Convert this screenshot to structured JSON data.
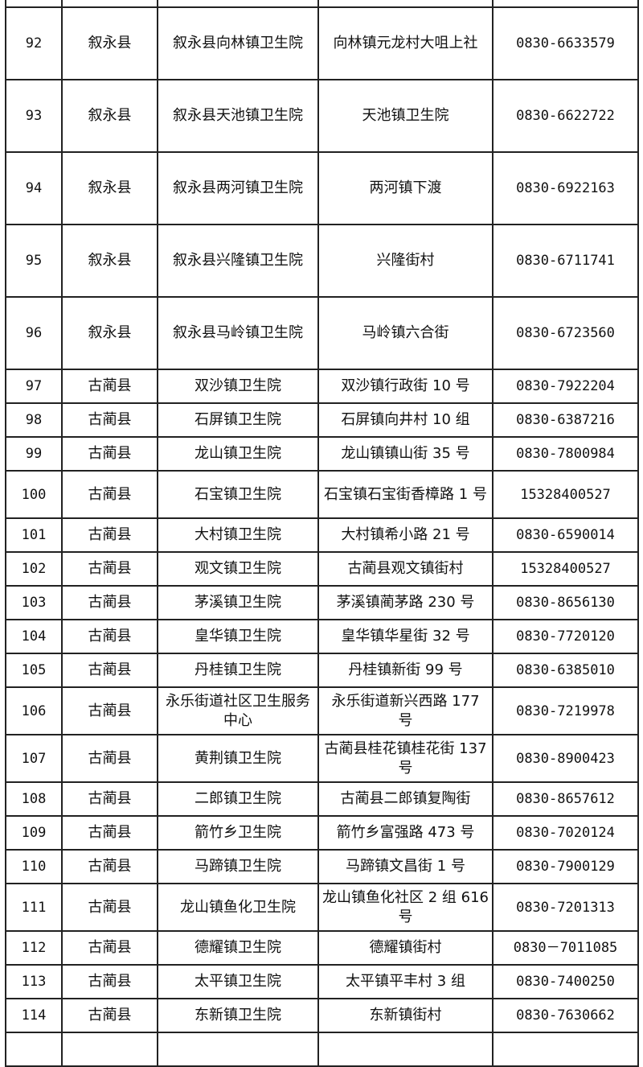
{
  "rows": [
    {
      "no": "",
      "county": "",
      "hospital": "",
      "address": "",
      "phone": ""
    },
    {
      "no": "92",
      "county": "叙永县",
      "hospital": "叙永县向林镇卫生院",
      "address": "向林镇元龙村大咀上社",
      "phone": "0830-6633579"
    },
    {
      "no": "93",
      "county": "叙永县",
      "hospital": "叙永县天池镇卫生院",
      "address": "天池镇卫生院",
      "phone": "0830-6622722"
    },
    {
      "no": "94",
      "county": "叙永县",
      "hospital": "叙永县两河镇卫生院",
      "address": "两河镇下渡",
      "phone": "0830-6922163"
    },
    {
      "no": "95",
      "county": "叙永县",
      "hospital": "叙永县兴隆镇卫生院",
      "address": "兴隆街村",
      "phone": "0830-6711741"
    },
    {
      "no": "96",
      "county": "叙永县",
      "hospital": "叙永县马岭镇卫生院",
      "address": "马岭镇六合街",
      "phone": "0830-6723560"
    },
    {
      "no": "97",
      "county": "古蔺县",
      "hospital": "双沙镇卫生院",
      "address": "双沙镇行政街 10 号",
      "phone": "0830-7922204"
    },
    {
      "no": "98",
      "county": "古蔺县",
      "hospital": "石屏镇卫生院",
      "address": "石屏镇向井村 10 组",
      "phone": "0830-6387216"
    },
    {
      "no": "99",
      "county": "古蔺县",
      "hospital": "龙山镇卫生院",
      "address": "龙山镇镇山街 35 号",
      "phone": "0830-7800984"
    },
    {
      "no": "100",
      "county": "古蔺县",
      "hospital": "石宝镇卫生院",
      "address": "石宝镇石宝街香樟路 1 号",
      "phone": "15328400527"
    },
    {
      "no": "101",
      "county": "古蔺县",
      "hospital": "大村镇卫生院",
      "address": "大村镇希小路 21 号",
      "phone": "0830-6590014"
    },
    {
      "no": "102",
      "county": "古蔺县",
      "hospital": "观文镇卫生院",
      "address": "古蔺县观文镇街村",
      "phone": "15328400527"
    },
    {
      "no": "103",
      "county": "古蔺县",
      "hospital": "茅溪镇卫生院",
      "address": "茅溪镇蔺茅路 230 号",
      "phone": "0830-8656130"
    },
    {
      "no": "104",
      "county": "古蔺县",
      "hospital": "皇华镇卫生院",
      "address": "皇华镇华星街 32 号",
      "phone": "0830-7720120"
    },
    {
      "no": "105",
      "county": "古蔺县",
      "hospital": "丹桂镇卫生院",
      "address": "丹桂镇新街 99 号",
      "phone": "0830-6385010"
    },
    {
      "no": "106",
      "county": "古蔺县",
      "hospital": "永乐街道社区卫生服务中心",
      "address": "永乐街道新兴西路 177 号",
      "phone": "0830-7219978"
    },
    {
      "no": "107",
      "county": "古蔺县",
      "hospital": "黄荆镇卫生院",
      "address": "古蔺县桂花镇桂花街 137 号",
      "phone": "0830-8900423"
    },
    {
      "no": "108",
      "county": "古蔺县",
      "hospital": "二郎镇卫生院",
      "address": "古蔺县二郎镇复陶街",
      "phone": "0830-8657612"
    },
    {
      "no": "109",
      "county": "古蔺县",
      "hospital": "箭竹乡卫生院",
      "address": "箭竹乡富强路 473 号",
      "phone": "0830-7020124"
    },
    {
      "no": "110",
      "county": "古蔺县",
      "hospital": "马蹄镇卫生院",
      "address": "马蹄镇文昌街 1 号",
      "phone": "0830-7900129"
    },
    {
      "no": "111",
      "county": "古蔺县",
      "hospital": "龙山镇鱼化卫生院",
      "address": "龙山镇鱼化社区 2 组 616 号",
      "phone": "0830-7201313"
    },
    {
      "no": "112",
      "county": "古蔺县",
      "hospital": "德耀镇卫生院",
      "address": "德耀镇街村",
      "phone": "0830－7011085"
    },
    {
      "no": "113",
      "county": "古蔺县",
      "hospital": "太平镇卫生院",
      "address": "太平镇平丰村 3 组",
      "phone": "0830-7400250"
    },
    {
      "no": "114",
      "county": "古蔺县",
      "hospital": "东新镇卫生院",
      "address": "东新镇街村",
      "phone": "0830-7630662"
    },
    {
      "no": "",
      "county": "",
      "hospital": "",
      "address": "",
      "phone": ""
    }
  ]
}
